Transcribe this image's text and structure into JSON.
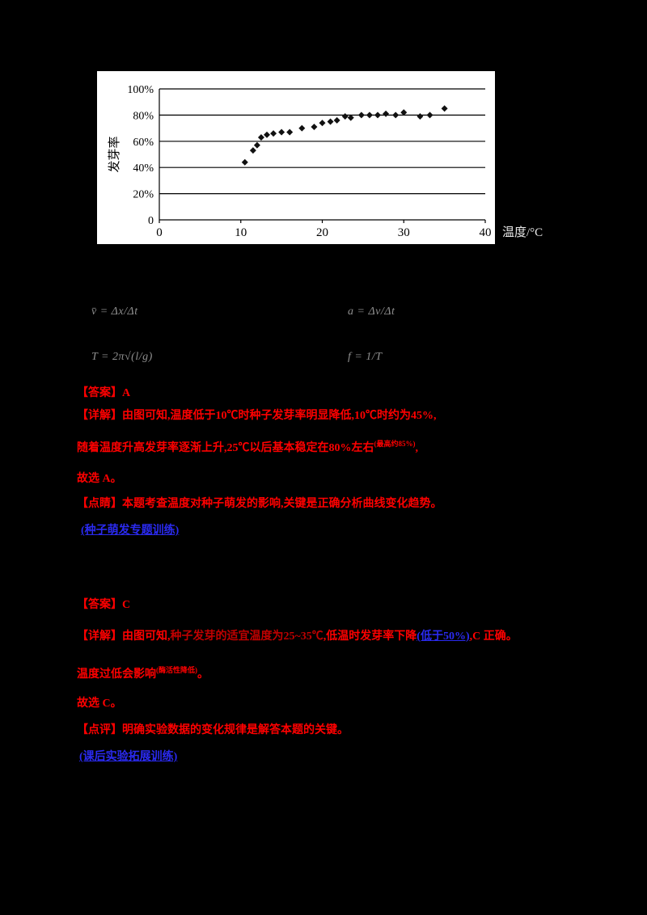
{
  "chart_data": {
    "type": "scatter",
    "title": "",
    "xlabel": "温度/°C",
    "ylabel": "发芽率",
    "xlim": [
      0,
      40
    ],
    "ylim": [
      0,
      100
    ],
    "xticks": [
      0,
      10,
      20,
      30,
      40
    ],
    "yticks": [
      0,
      20,
      40,
      60,
      80,
      100
    ],
    "ytick_labels": [
      "0",
      "20%",
      "40%",
      "60%",
      "80%",
      "100%"
    ],
    "grid": true,
    "marker": "diamond",
    "points": [
      [
        10.5,
        44
      ],
      [
        11.5,
        53
      ],
      [
        12,
        57
      ],
      [
        12.5,
        63
      ],
      [
        13.2,
        65
      ],
      [
        14,
        66
      ],
      [
        15,
        67
      ],
      [
        16,
        67
      ],
      [
        17.5,
        70
      ],
      [
        19,
        71
      ],
      [
        20,
        74
      ],
      [
        21,
        75
      ],
      [
        21.8,
        76
      ],
      [
        22.8,
        79
      ],
      [
        23.5,
        78
      ],
      [
        24.8,
        80
      ],
      [
        25.8,
        80
      ],
      [
        26.8,
        80
      ],
      [
        27.8,
        81
      ],
      [
        29,
        80
      ],
      [
        30,
        82
      ],
      [
        32,
        79
      ],
      [
        33.2,
        80
      ],
      [
        35,
        85
      ]
    ]
  },
  "chart": {
    "xlabel_outside": "温度/°C"
  },
  "formulas": {
    "tl": "v̄ = Δx/Δt",
    "tr": "a = Δv/Δt",
    "bl": "T = 2π√(l/g)",
    "br": "f = 1/T"
  },
  "solution1": {
    "answer": "【答案】A",
    "detail1": "【详解】由图可知,温度低于10℃时种子发芽率明显降低,10℃时约为45%,",
    "detail2a": "随着温度升高发芽率逐渐上升,25℃以后基本稳定在80%左右",
    "detail2_sup": "(最高约85%)",
    "detail2b": ",",
    "choose": "故选 A。",
    "tip": "【点睛】本题考查温度对种子萌发的影响,关键是正确分析曲线变化趋势。",
    "link": "(种子萌发专题训练)"
  },
  "solution2": {
    "answer": "【答案】C",
    "detail_a": "【详解】由图可知,",
    "detail_b": "种子发芽的适宜温度为25~35℃",
    "detail_c": ",低温时发芽率下降",
    "detail_d": "(低于50%)",
    "detail_e": ",C 正确。",
    "line3a": "温度过低会影响",
    "line3_sup": "(酶活性降低)",
    "line3b": "。",
    "choose": "故选 C。",
    "tip": "【点评】明确实验数据的变化规律是解答本题的关键。",
    "link": "(课后实验拓展训练)"
  }
}
